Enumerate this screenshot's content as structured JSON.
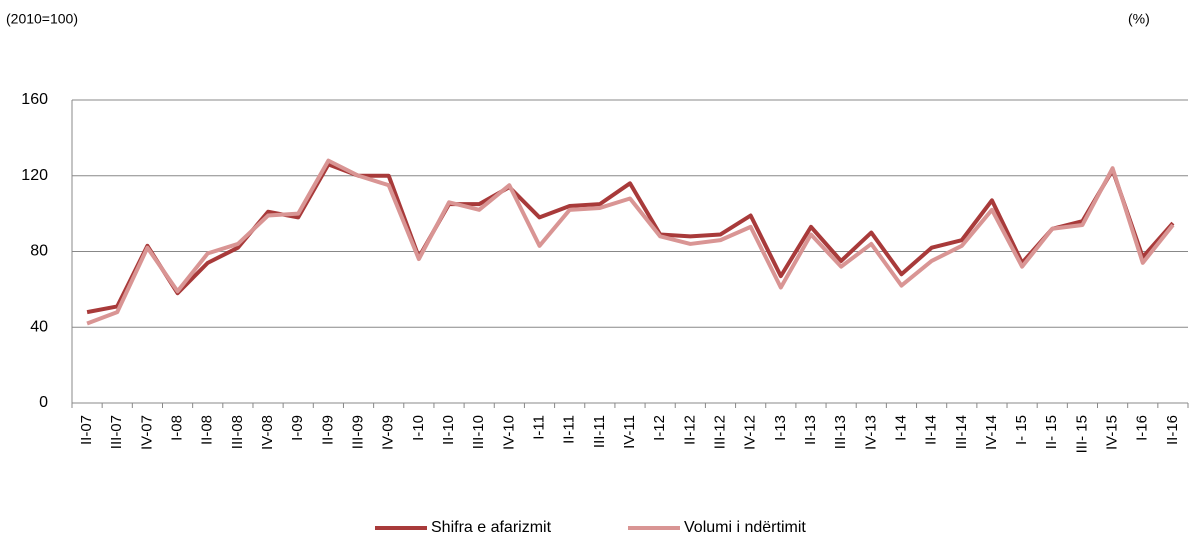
{
  "chart_data": {
    "type": "line",
    "subtitle": "(2010=100)",
    "y_unit": "(%)",
    "categories": [
      "II-07",
      "III-07",
      "IV-07",
      "I-08",
      "II-08",
      "III-08",
      "IV-08",
      "I-09",
      "II-09",
      "III-09",
      "IV-09",
      "I-10",
      "II-10",
      "III-10",
      "IV-10",
      "I-11",
      "II-11",
      "III-11",
      "IV-11",
      "I-12",
      "II-12",
      "III-12",
      "IV-12",
      "I-13",
      "II-13",
      "III-13",
      "IV-13",
      "I-14",
      "II-14",
      "III-14",
      "IV-14",
      "I- 15",
      "II- 15",
      "III- 15",
      "IV-15",
      "I-16",
      "II-16"
    ],
    "series": [
      {
        "name": "Shifra e afarizmit",
        "color": "#a83a3a",
        "values": [
          48,
          51,
          83,
          58,
          74,
          82,
          101,
          98,
          126,
          120,
          120,
          77,
          105,
          105,
          114,
          98,
          104,
          105,
          116,
          89,
          88,
          89,
          99,
          67,
          93,
          75,
          90,
          68,
          82,
          86,
          107,
          74,
          92,
          96,
          123,
          77,
          95
        ]
      },
      {
        "name": "Volumi i ndërtimit",
        "color": "#d99594",
        "values": [
          42,
          48,
          82,
          59,
          79,
          84,
          99,
          100,
          128,
          120,
          115,
          76,
          106,
          102,
          115,
          83,
          102,
          103,
          108,
          88,
          84,
          86,
          93,
          61,
          89,
          72,
          84,
          62,
          75,
          83,
          102,
          72,
          92,
          94,
          124,
          74,
          94
        ]
      }
    ],
    "ylim": [
      0,
      160
    ],
    "yticks": [
      0,
      40,
      80,
      120,
      160
    ],
    "grid": true,
    "legend": "bottom"
  }
}
